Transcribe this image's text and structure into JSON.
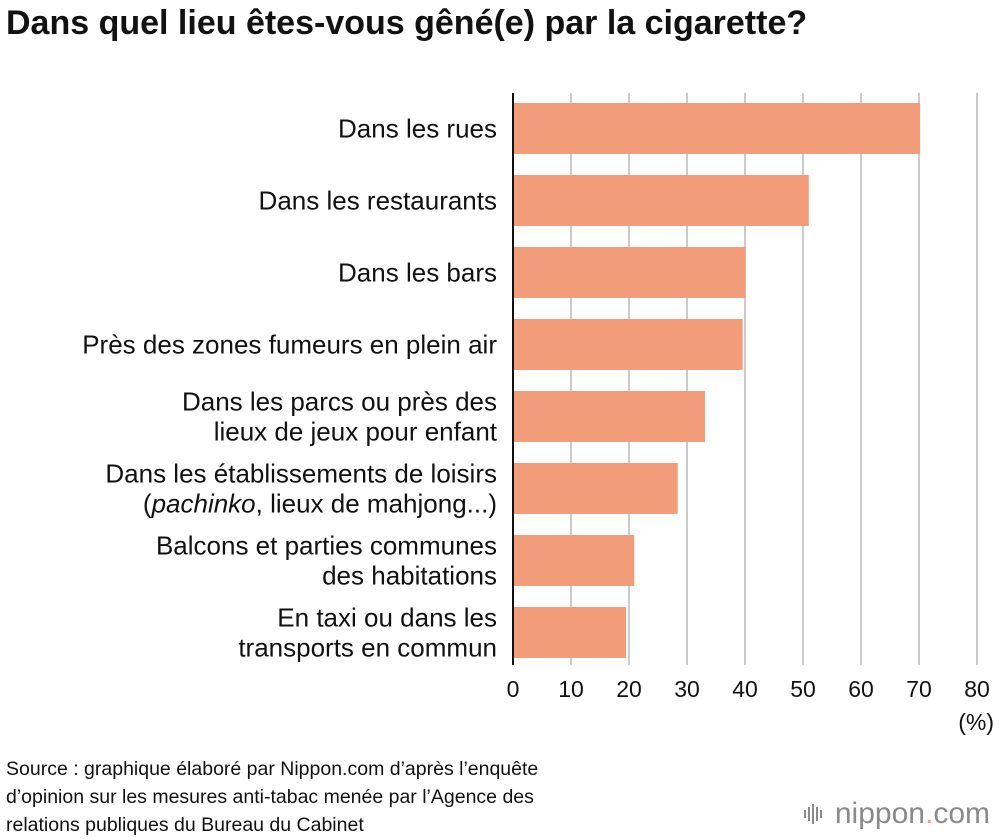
{
  "title": "Dans quel lieu êtes-vous gêné(e) par la cigarette?",
  "chart_data": {
    "type": "bar",
    "orientation": "horizontal",
    "categories": [
      [
        "Dans les rues"
      ],
      [
        "Dans les restaurants"
      ],
      [
        "Dans les bars"
      ],
      [
        "Près des zones fumeurs en plein air"
      ],
      [
        "Dans les parcs ou près des",
        "lieux de jeux pour enfant"
      ],
      [
        "Dans les établissements de loisirs",
        "(pachinko, lieux de mahjong...)"
      ],
      [
        "Balcons et parties communes",
        "des habitations"
      ],
      [
        "En taxi ou dans les",
        "transports en commun"
      ]
    ],
    "values": [
      70.2,
      51.0,
      40.1,
      39.6,
      33.1,
      28.4,
      20.9,
      19.5
    ],
    "xlim": [
      0,
      80
    ],
    "xticks": [
      0,
      10,
      20,
      30,
      40,
      50,
      60,
      70,
      80
    ],
    "xunit": "(%)",
    "grid": true,
    "bar_color": "#f29c7a",
    "grid_color": "#cccccc"
  },
  "source": [
    "Source : graphique élaboré par Nippon.com d’après l’enquête",
    "d’opinion sur les mesures anti-tabac menée par l’Agence des",
    "relations publiques du Bureau du Cabinet"
  ],
  "brand": {
    "name": "nippon",
    "dot": ".",
    "suffix": "com",
    "dot_color": "#d9a18e"
  }
}
